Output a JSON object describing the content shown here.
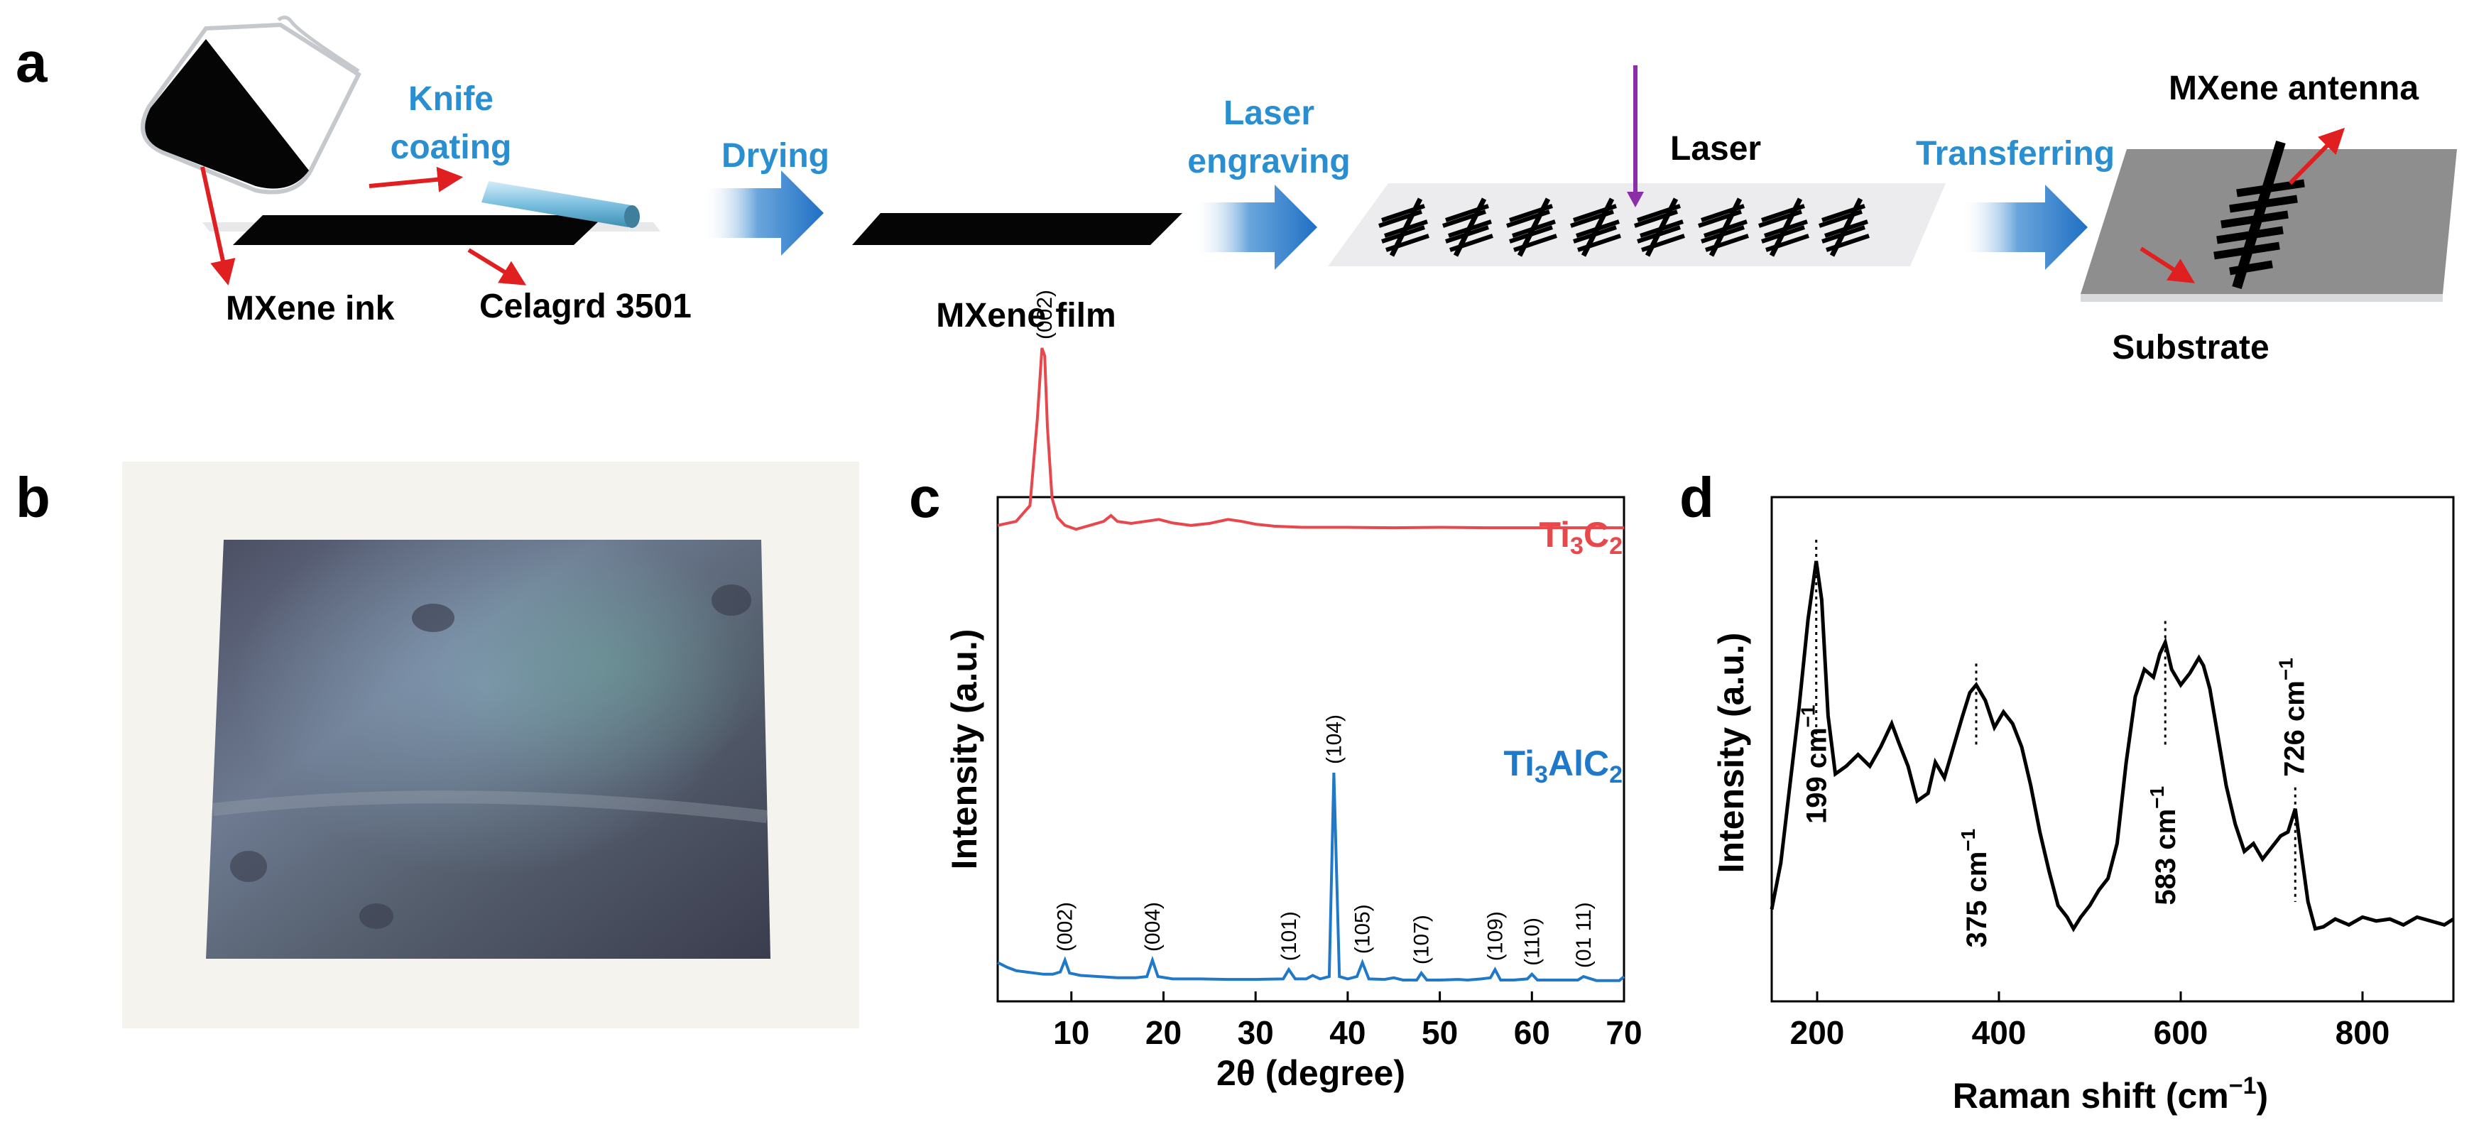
{
  "panels": {
    "a": "a",
    "b": "b",
    "c": "c",
    "d": "d"
  },
  "schematic": {
    "steps": [
      "Knife\ncoating",
      "Drying",
      "Laser\nengraving",
      "Transferring"
    ],
    "labels": {
      "mxene_ink": "MXene ink",
      "celgard": "Celagrd 3501",
      "mxene_film": "MXene film",
      "laser": "Laser",
      "antenna": "MXene antenna",
      "substrate": "Substrate"
    },
    "colors": {
      "step_text": "#2a8fd0",
      "arrow": "#1f6fc4",
      "pointer": "#e02020",
      "laser": "#8a2fa8"
    }
  },
  "chart_data": [
    {
      "panel": "c",
      "type": "line",
      "xlabel": "2θ (degree)",
      "ylabel": "Intensity (a.u.)",
      "xlim": [
        2,
        70
      ],
      "xticks": [
        10,
        20,
        30,
        40,
        50,
        60,
        70
      ],
      "series": [
        {
          "name": "Ti3C2",
          "label_main": "Ti",
          "label_sub1": "3",
          "label_mid": "C",
          "label_sub2": "2",
          "color": "#e8474c",
          "x": [
            2,
            4,
            5.5,
            6.3,
            6.8,
            7.1,
            7.4,
            7.9,
            8.5,
            9.3,
            10.5,
            12,
            13.5,
            14.3,
            15,
            16.5,
            18,
            19.5,
            21,
            23,
            25,
            27,
            28.5,
            30,
            32,
            35,
            40,
            45,
            50,
            55,
            60,
            65,
            70
          ],
          "y": [
            0.55,
            0.56,
            0.6,
            0.82,
            1.0,
            0.98,
            0.8,
            0.62,
            0.57,
            0.55,
            0.54,
            0.55,
            0.56,
            0.575,
            0.56,
            0.555,
            0.56,
            0.565,
            0.556,
            0.55,
            0.555,
            0.565,
            0.56,
            0.553,
            0.548,
            0.545,
            0.545,
            0.544,
            0.545,
            0.544,
            0.544,
            0.544,
            0.544
          ],
          "peaks": [
            {
              "label": "(002)",
              "x": 7.1,
              "y": 1.0
            }
          ]
        },
        {
          "name": "Ti3AlC2",
          "label_main": "Ti",
          "label_sub1": "3",
          "label_mid": "AlC",
          "label_sub2": "2",
          "color": "#1f78c8",
          "x": [
            2,
            3,
            4,
            5,
            6,
            7,
            8,
            8.8,
            9.3,
            9.8,
            11,
            13,
            15,
            17,
            18.2,
            18.8,
            19.4,
            21,
            24,
            27,
            30,
            33,
            33.6,
            34.3,
            35.5,
            36.2,
            37,
            38,
            38.5,
            39.1,
            40,
            41,
            41.6,
            42.3,
            44,
            45,
            46,
            47.5,
            48,
            48.6,
            50,
            52,
            53,
            54.5,
            55.5,
            56,
            56.6,
            58,
            59.5,
            60,
            60.6,
            62,
            64,
            65,
            65.6,
            67,
            69.5,
            70
          ],
          "y": [
            0.09,
            0.07,
            0.055,
            0.05,
            0.045,
            0.04,
            0.04,
            0.05,
            0.1,
            0.045,
            0.035,
            0.03,
            0.025,
            0.025,
            0.03,
            0.1,
            0.03,
            0.02,
            0.02,
            0.018,
            0.018,
            0.02,
            0.06,
            0.02,
            0.02,
            0.035,
            0.02,
            0.03,
            0.9,
            0.03,
            0.02,
            0.03,
            0.09,
            0.02,
            0.018,
            0.025,
            0.015,
            0.015,
            0.045,
            0.015,
            0.015,
            0.018,
            0.015,
            0.02,
            0.025,
            0.06,
            0.015,
            0.015,
            0.02,
            0.04,
            0.015,
            0.015,
            0.015,
            0.015,
            0.03,
            0.013,
            0.013,
            0.03
          ],
          "peaks": [
            {
              "label": "(002)",
              "x": 9.3,
              "y": 0.1
            },
            {
              "label": "(004)",
              "x": 18.8,
              "y": 0.1
            },
            {
              "label": "(101)",
              "x": 33.6,
              "y": 0.06
            },
            {
              "label": "(104)",
              "x": 38.5,
              "y": 0.9
            },
            {
              "label": "(105)",
              "x": 41.6,
              "y": 0.09
            },
            {
              "label": "(107)",
              "x": 48,
              "y": 0.045
            },
            {
              "label": "(109)",
              "x": 56,
              "y": 0.06
            },
            {
              "label": "(110)",
              "x": 60,
              "y": 0.04
            },
            {
              "label": "(01 11)",
              "x": 65.6,
              "y": 0.03
            }
          ]
        }
      ]
    },
    {
      "panel": "d",
      "type": "line",
      "xlabel_main": "Raman shift (cm",
      "xlabel_sup": "−1",
      "xlabel_end": ")",
      "ylabel": "Intensity (a.u.)",
      "xlim": [
        150,
        900
      ],
      "xticks": [
        200,
        400,
        600,
        800
      ],
      "series": [
        {
          "name": "MXene",
          "color": "#000000",
          "x": [
            150,
            160,
            170,
            180,
            190,
            199,
            205,
            212,
            220,
            232,
            245,
            258,
            270,
            282,
            290,
            300,
            310,
            322,
            330,
            340,
            350,
            360,
            368,
            375,
            385,
            395,
            405,
            415,
            425,
            435,
            445,
            455,
            465,
            475,
            482,
            490,
            500,
            510,
            520,
            530,
            540,
            550,
            560,
            570,
            577,
            583,
            590,
            600,
            610,
            620,
            625,
            632,
            640,
            650,
            660,
            670,
            680,
            690,
            700,
            710,
            718,
            726,
            733,
            740,
            748,
            757,
            770,
            785,
            800,
            815,
            830,
            845,
            860,
            875,
            890,
            900
          ],
          "y": [
            0.1,
            0.22,
            0.42,
            0.62,
            0.85,
            1.0,
            0.9,
            0.6,
            0.45,
            0.47,
            0.5,
            0.47,
            0.52,
            0.58,
            0.53,
            0.47,
            0.38,
            0.4,
            0.48,
            0.44,
            0.52,
            0.6,
            0.66,
            0.68,
            0.64,
            0.57,
            0.61,
            0.58,
            0.52,
            0.42,
            0.3,
            0.2,
            0.11,
            0.08,
            0.05,
            0.08,
            0.11,
            0.15,
            0.18,
            0.27,
            0.48,
            0.65,
            0.72,
            0.7,
            0.76,
            0.79,
            0.72,
            0.68,
            0.71,
            0.75,
            0.73,
            0.67,
            0.56,
            0.42,
            0.32,
            0.25,
            0.27,
            0.23,
            0.26,
            0.29,
            0.3,
            0.36,
            0.24,
            0.12,
            0.05,
            0.055,
            0.075,
            0.06,
            0.08,
            0.07,
            0.075,
            0.06,
            0.08,
            0.07,
            0.06,
            0.075
          ],
          "peaks": [
            {
              "label": "199 cm",
              "sup": "−1",
              "x": 199,
              "y": 1.0
            },
            {
              "label": "375 cm",
              "sup": "−1",
              "x": 375,
              "y": 0.68
            },
            {
              "label": "583 cm",
              "sup": "−1",
              "x": 583,
              "y": 0.79
            },
            {
              "label": "726 cm",
              "sup": "−1",
              "x": 726,
              "y": 0.36
            }
          ]
        }
      ]
    }
  ]
}
